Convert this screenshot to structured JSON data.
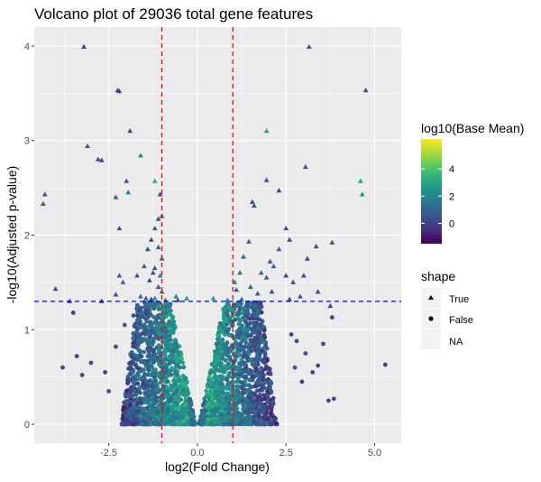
{
  "chart_data": {
    "type": "scatter",
    "title": "Volcano plot of 29036 total gene features",
    "xlabel": "log2(Fold Change)",
    "ylabel": "-log10(Adjusted p-value)",
    "xlim": [
      -4.6,
      5.75
    ],
    "ylim": [
      -0.2,
      4.2
    ],
    "x_ticks": [
      -2.5,
      0.0,
      2.5,
      5.0
    ],
    "x_tick_labels": [
      "-2.5",
      "0.0",
      "2.5",
      "5.0"
    ],
    "y_ticks": [
      0,
      1,
      2,
      3,
      4
    ],
    "y_tick_labels": [
      "0",
      "1",
      "2",
      "3",
      "4"
    ],
    "grid": true,
    "panel_background": "#ebebeb",
    "reference_lines": {
      "vertical": {
        "x": [
          -1,
          1
        ],
        "color": "#ff0000",
        "style": "dashed"
      },
      "horizontal": {
        "y": 1.3,
        "color": "#0000ff",
        "style": "dashed"
      }
    },
    "color_scale": {
      "title": "log10(Base Mean)",
      "palette": "viridis",
      "min": -1.5,
      "max": 6.2,
      "ticks": [
        0,
        2,
        4
      ],
      "tick_labels": [
        "0",
        "2",
        "4"
      ]
    },
    "shape_legend": {
      "title": "shape",
      "entries": [
        {
          "label": "True",
          "shape": "triangle"
        },
        {
          "label": "False",
          "shape": "circle"
        },
        {
          "label": "NA",
          "shape": "none"
        }
      ]
    },
    "legend_position": "right",
    "significant_points": [
      {
        "x": -3.2,
        "y": 3.99,
        "c": 0.2
      },
      {
        "x": -2.25,
        "y": 3.53,
        "c": 0.5
      },
      {
        "x": -2.2,
        "y": 3.52,
        "c": 0.0
      },
      {
        "x": -1.9,
        "y": 3.1,
        "c": 0.3
      },
      {
        "x": -3.1,
        "y": 2.94,
        "c": 0.4
      },
      {
        "x": -2.8,
        "y": 2.8,
        "c": 0.1
      },
      {
        "x": -2.7,
        "y": 2.79,
        "c": 0.3
      },
      {
        "x": -1.6,
        "y": 2.84,
        "c": 2.2
      },
      {
        "x": -2.0,
        "y": 2.57,
        "c": 0.5
      },
      {
        "x": -1.2,
        "y": 2.57,
        "c": 3.3
      },
      {
        "x": -1.95,
        "y": 2.45,
        "c": 1.8
      },
      {
        "x": -2.3,
        "y": 2.4,
        "c": 0.8
      },
      {
        "x": -4.3,
        "y": 2.43,
        "c": 0.4
      },
      {
        "x": -4.35,
        "y": 2.33,
        "c": 0.6
      },
      {
        "x": -1.05,
        "y": 2.43,
        "c": 0.2
      },
      {
        "x": -1.1,
        "y": 2.17,
        "c": 0.5
      },
      {
        "x": -1.0,
        "y": 2.2,
        "c": 1.2
      },
      {
        "x": -2.2,
        "y": 2.07,
        "c": 0.3
      },
      {
        "x": -1.2,
        "y": 2.07,
        "c": 0.7
      },
      {
        "x": -1.3,
        "y": 1.95,
        "c": 0.1
      },
      {
        "x": -1.1,
        "y": 1.87,
        "c": 1.0
      },
      {
        "x": -1.4,
        "y": 1.85,
        "c": 0.4
      },
      {
        "x": -1.0,
        "y": 1.75,
        "c": 1.6
      },
      {
        "x": -1.5,
        "y": 1.67,
        "c": 0.9
      },
      {
        "x": -1.2,
        "y": 1.65,
        "c": 0.3
      },
      {
        "x": -1.7,
        "y": 1.57,
        "c": 0.5
      },
      {
        "x": -1.05,
        "y": 1.57,
        "c": 2.0
      },
      {
        "x": -1.35,
        "y": 1.52,
        "c": 0.2
      },
      {
        "x": -2.2,
        "y": 1.57,
        "c": 0.6
      },
      {
        "x": -2.1,
        "y": 1.5,
        "c": 0.8
      },
      {
        "x": -2.3,
        "y": 1.37,
        "c": 0.4
      },
      {
        "x": -1.1,
        "y": 1.45,
        "c": 0.7
      },
      {
        "x": -1.6,
        "y": 1.35,
        "c": 1.2
      },
      {
        "x": -1.2,
        "y": 1.33,
        "c": 2.5
      },
      {
        "x": -1.3,
        "y": 1.32,
        "c": 0.1
      },
      {
        "x": -2.7,
        "y": 1.3,
        "c": 0.3
      },
      {
        "x": -1.45,
        "y": 1.33,
        "c": 0.9
      },
      {
        "x": -3.6,
        "y": 1.3,
        "c": 0.5
      },
      {
        "x": -4.0,
        "y": 1.43,
        "c": 0.2
      },
      {
        "x": -1.0,
        "y": 1.4,
        "c": 1.5
      },
      {
        "x": -0.9,
        "y": 1.31,
        "c": 1.1
      },
      {
        "x": -0.55,
        "y": 1.31,
        "c": 0.4
      },
      {
        "x": -0.3,
        "y": 1.33,
        "c": 2.8
      },
      {
        "x": -0.6,
        "y": 1.35,
        "c": 2.2
      },
      {
        "x": -1.25,
        "y": 1.6,
        "c": 0.0
      },
      {
        "x": 3.15,
        "y": 3.99,
        "c": 0.6
      },
      {
        "x": 4.75,
        "y": 3.53,
        "c": 0.4
      },
      {
        "x": 1.95,
        "y": 3.1,
        "c": 2.9
      },
      {
        "x": 3.05,
        "y": 2.72,
        "c": 0.3
      },
      {
        "x": 4.6,
        "y": 2.57,
        "c": 3.1
      },
      {
        "x": 4.65,
        "y": 2.43,
        "c": 2.4
      },
      {
        "x": 1.95,
        "y": 2.58,
        "c": 0.5
      },
      {
        "x": 2.3,
        "y": 2.47,
        "c": 0.2
      },
      {
        "x": 1.55,
        "y": 2.35,
        "c": 0.3
      },
      {
        "x": 1.6,
        "y": 2.31,
        "c": 0.6
      },
      {
        "x": 2.5,
        "y": 2.07,
        "c": 0.4
      },
      {
        "x": 2.6,
        "y": 1.95,
        "c": 0.2
      },
      {
        "x": 1.45,
        "y": 1.93,
        "c": 0.8
      },
      {
        "x": 3.35,
        "y": 1.88,
        "c": 0.3
      },
      {
        "x": 2.3,
        "y": 1.85,
        "c": 0.7
      },
      {
        "x": 3.8,
        "y": 1.92,
        "c": 0.5
      },
      {
        "x": 3.1,
        "y": 1.75,
        "c": 0.1
      },
      {
        "x": 2.05,
        "y": 1.72,
        "c": 0.6
      },
      {
        "x": 2.15,
        "y": 1.67,
        "c": 0.9
      },
      {
        "x": 1.3,
        "y": 1.77,
        "c": 1.1
      },
      {
        "x": 1.95,
        "y": 1.55,
        "c": 0.4
      },
      {
        "x": 2.5,
        "y": 1.57,
        "c": 0.2
      },
      {
        "x": 1.2,
        "y": 1.6,
        "c": 1.4
      },
      {
        "x": 3.0,
        "y": 1.57,
        "c": 0.3
      },
      {
        "x": 1.05,
        "y": 1.5,
        "c": 2.1
      },
      {
        "x": 1.1,
        "y": 1.42,
        "c": 0.6
      },
      {
        "x": 1.5,
        "y": 1.45,
        "c": 0.9
      },
      {
        "x": 1.7,
        "y": 1.38,
        "c": 0.5
      },
      {
        "x": 2.1,
        "y": 1.4,
        "c": 0.3
      },
      {
        "x": 2.9,
        "y": 1.35,
        "c": 0.7
      },
      {
        "x": 3.4,
        "y": 1.4,
        "c": 0.2
      },
      {
        "x": 1.25,
        "y": 1.32,
        "c": 1.3
      },
      {
        "x": 2.6,
        "y": 1.32,
        "c": 0.4
      },
      {
        "x": 0.45,
        "y": 1.33,
        "c": 2.6
      },
      {
        "x": 0.85,
        "y": 1.31,
        "c": 1.9
      },
      {
        "x": 3.75,
        "y": 1.25,
        "c": 0.1
      },
      {
        "x": 2.7,
        "y": 1.5,
        "c": 0.5
      },
      {
        "x": 1.8,
        "y": 1.6,
        "c": 1.0
      }
    ],
    "outlier_points": [
      {
        "x": -3.8,
        "y": 0.6,
        "c": 0.3
      },
      {
        "x": -3.4,
        "y": 0.72,
        "c": 0.1
      },
      {
        "x": -3.0,
        "y": 0.65,
        "c": 0.4
      },
      {
        "x": -2.6,
        "y": 0.55,
        "c": 0.2
      },
      {
        "x": -3.5,
        "y": 1.18,
        "c": 0.0
      },
      {
        "x": -3.25,
        "y": 0.52,
        "c": 0.3
      },
      {
        "x": -2.5,
        "y": 0.35,
        "c": 0.5
      },
      {
        "x": -2.3,
        "y": 0.82,
        "c": 0.3
      },
      {
        "x": -2.05,
        "y": 1.05,
        "c": 0.6
      },
      {
        "x": 5.3,
        "y": 0.63,
        "c": 0.2
      },
      {
        "x": 3.8,
        "y": 1.13,
        "c": 0.1
      },
      {
        "x": 3.85,
        "y": 0.27,
        "c": 0.3
      },
      {
        "x": 3.7,
        "y": 0.25,
        "c": 0.0
      },
      {
        "x": 3.4,
        "y": 0.62,
        "c": 0.4
      },
      {
        "x": 3.25,
        "y": 0.55,
        "c": 0.2
      },
      {
        "x": 3.05,
        "y": 0.75,
        "c": 0.5
      },
      {
        "x": 2.95,
        "y": 0.45,
        "c": 0.1
      },
      {
        "x": 2.8,
        "y": 0.88,
        "c": 0.3
      },
      {
        "x": 2.75,
        "y": 0.6,
        "c": 0.6
      },
      {
        "x": 2.65,
        "y": 0.95,
        "c": 0.2
      },
      {
        "x": 3.55,
        "y": 0.85,
        "c": 0.4
      },
      {
        "x": 1.6,
        "y": 1.22,
        "c": 0.8
      },
      {
        "x": -1.6,
        "y": 1.23,
        "c": 0.7
      },
      {
        "x": -1.8,
        "y": 1.15,
        "c": 0.4
      }
    ],
    "point_cloud": {
      "count": 2600,
      "x_range": [
        -2.6,
        3.0
      ],
      "y_range": [
        0.0,
        1.29
      ],
      "note": "dense V-shaped cloud of non-significant features"
    }
  }
}
